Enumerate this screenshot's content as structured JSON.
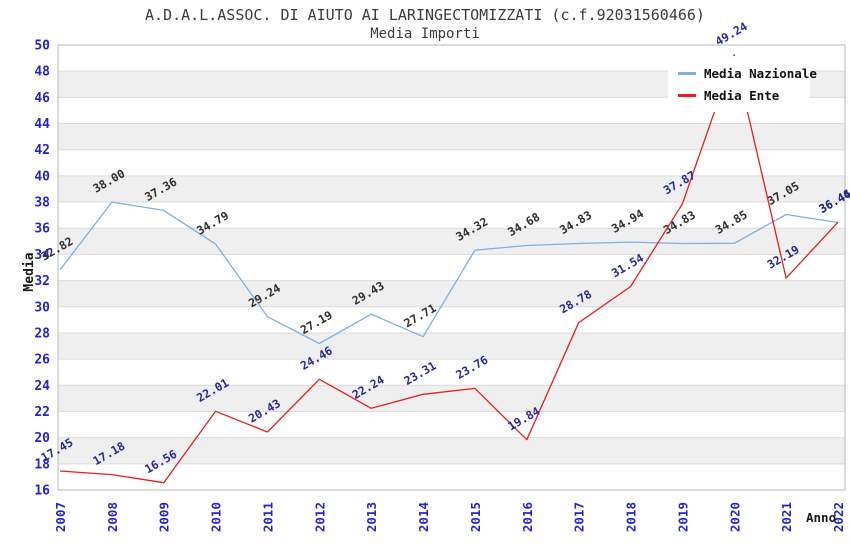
{
  "title": "A.D.A.L.ASSOC. DI AIUTO AI LARINGECTOMIZZATI (c.f.92031560466)",
  "subtitle": "Media Importi",
  "axes": {
    "y_title": "Media",
    "x_title": "Anno",
    "y_ticks": [
      16,
      18,
      20,
      22,
      24,
      26,
      28,
      30,
      32,
      34,
      36,
      38,
      40,
      42,
      44,
      46,
      48,
      50
    ]
  },
  "legend": {
    "items": [
      {
        "label": "Media Nazionale",
        "color": "#7fb0e0"
      },
      {
        "label": "Media Ente",
        "color": "#e81f1f"
      }
    ]
  },
  "chart_data": {
    "type": "line",
    "title": "A.D.A.L.ASSOC. DI AIUTO AI LARINGECTOMIZZATI (c.f.92031560466)",
    "subtitle": "Media Importi",
    "xlabel": "Anno",
    "ylabel": "Media",
    "x": [
      "2007",
      "2008",
      "2009",
      "2010",
      "2011",
      "2012",
      "2013",
      "2014",
      "2015",
      "2016",
      "2017",
      "2018",
      "2019",
      "2020",
      "2021",
      "2022"
    ],
    "series": [
      {
        "name": "Media Nazionale",
        "color": "#7fb0e0",
        "label_color": "#2e2e2e",
        "values": [
          32.82,
          38.0,
          37.36,
          34.79,
          29.24,
          27.19,
          29.43,
          27.71,
          34.32,
          34.68,
          34.83,
          34.94,
          34.83,
          34.85,
          37.05,
          36.44
        ]
      },
      {
        "name": "Media Ente",
        "color": "#e81f1f",
        "label_color": "#26269e",
        "values": [
          17.45,
          17.18,
          16.56,
          22.01,
          20.43,
          24.46,
          22.24,
          23.31,
          23.76,
          19.84,
          28.78,
          31.54,
          37.87,
          49.24,
          32.19,
          36.46
        ]
      }
    ],
    "ylim": [
      16,
      50
    ],
    "y_tick_step": 2,
    "grid": true,
    "band_fill": "#efefef",
    "gridline_color": "#dcdcdc",
    "border_color": "#b8b8b8",
    "tick_label_color": "#2424cf",
    "legend_position": "top-right",
    "value_labels": true,
    "value_label_rotation": -30,
    "x_label_rotation": -90
  }
}
